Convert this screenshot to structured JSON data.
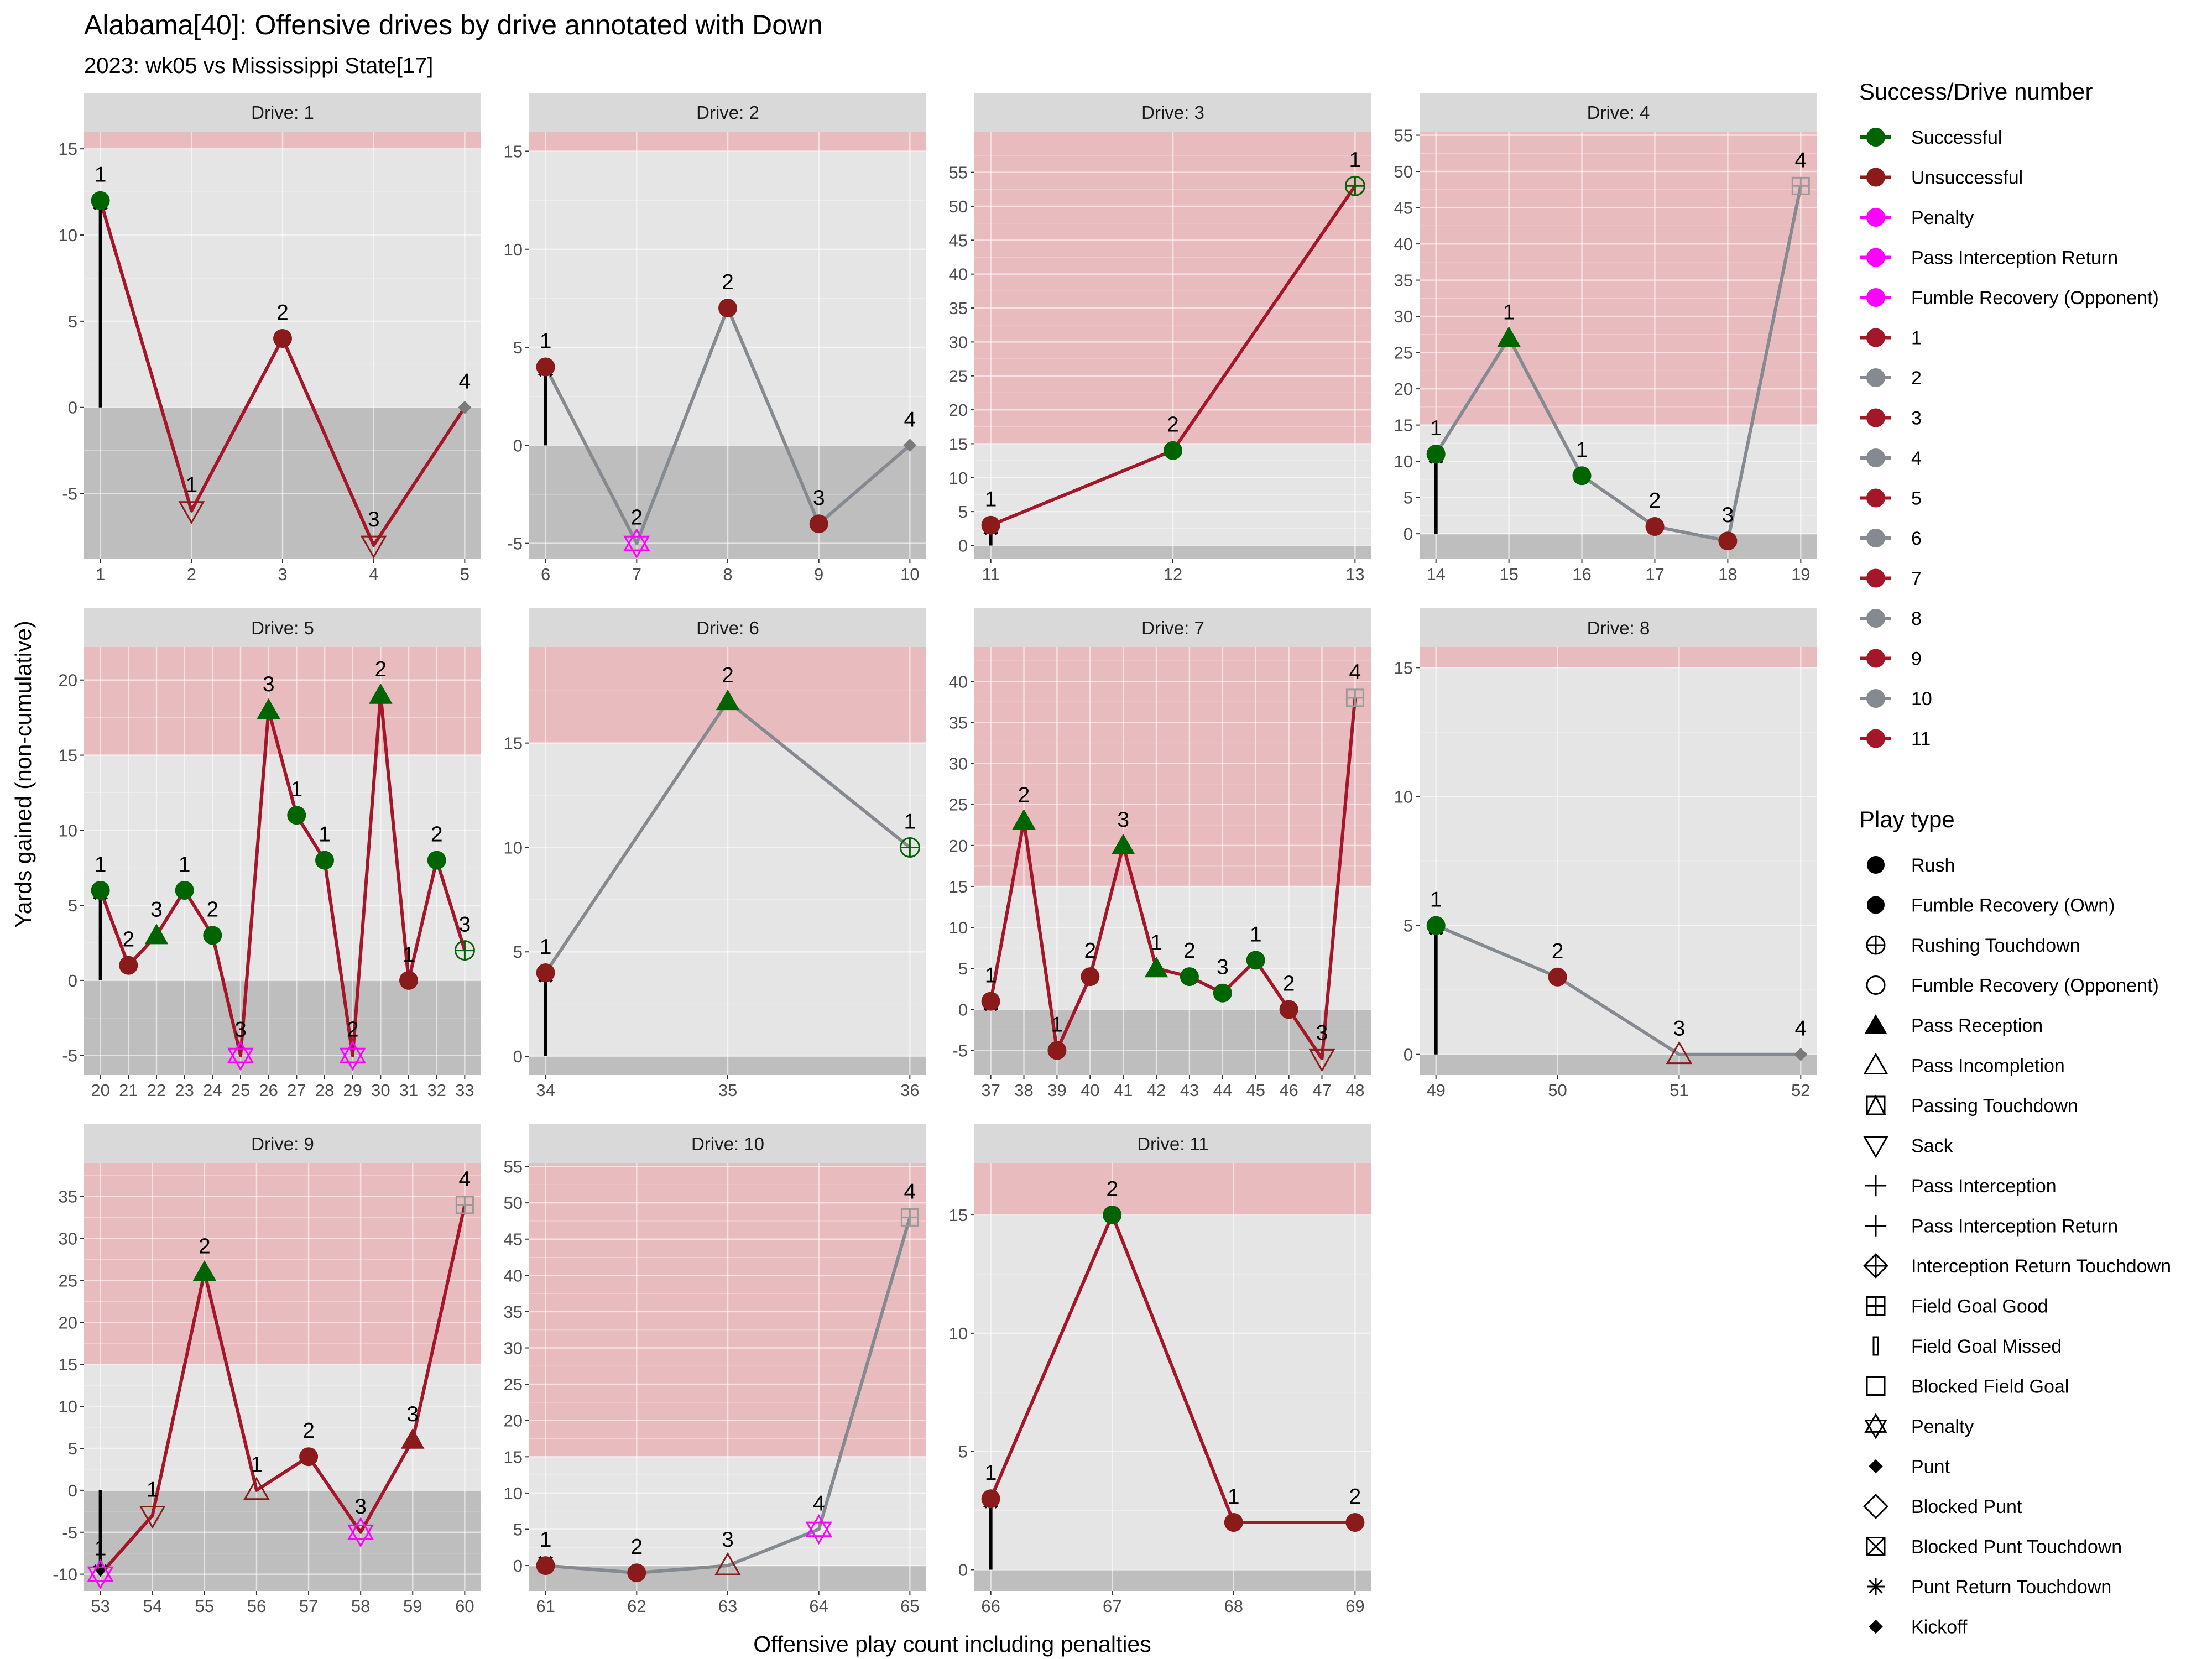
{
  "title": "Alabama[40]: Offensive drives by drive annotated with Down",
  "subtitle": "2023: wk05 vs Mississippi State[17]",
  "colors": {
    "successful": "#006400",
    "unsuccessful": "#8b1a1a",
    "penalty": "#ff00ff",
    "odd_drive_line": "#a4162a",
    "even_drive_line": "#848a90",
    "first_down_zone": "#e8bcbf",
    "loss_zone": "#bebebe",
    "panel_bg": "#e5e5e5",
    "strip_bg": "#d9d9d9"
  },
  "legend": {
    "success_title": "Success/Drive number",
    "success_items": [
      {
        "label": "Successful",
        "color": "#006400"
      },
      {
        "label": "Unsuccessful",
        "color": "#8b1a1a"
      },
      {
        "label": "Penalty",
        "color": "#ff00ff"
      },
      {
        "label": "Pass Interception Return",
        "color": "#ff00ff"
      },
      {
        "label": "Fumble Recovery (Opponent)",
        "color": "#ff00ff"
      },
      {
        "label": "1",
        "color": "#a4162a"
      },
      {
        "label": "2",
        "color": "#848a90"
      },
      {
        "label": "3",
        "color": "#a4162a"
      },
      {
        "label": "4",
        "color": "#848a90"
      },
      {
        "label": "5",
        "color": "#a4162a"
      },
      {
        "label": "6",
        "color": "#848a90"
      },
      {
        "label": "7",
        "color": "#a4162a"
      },
      {
        "label": "8",
        "color": "#848a90"
      },
      {
        "label": "9",
        "color": "#a4162a"
      },
      {
        "label": "10",
        "color": "#848a90"
      },
      {
        "label": "11",
        "color": "#a4162a"
      }
    ],
    "playtype_title": "Play type",
    "playtype_items": [
      {
        "label": "Rush",
        "shape": "circle-filled"
      },
      {
        "label": "Fumble Recovery (Own)",
        "shape": "circle-filled"
      },
      {
        "label": "Rushing Touchdown",
        "shape": "circle-plus"
      },
      {
        "label": "Fumble Recovery (Opponent)",
        "shape": "circle-open"
      },
      {
        "label": "Pass Reception",
        "shape": "triangle-filled"
      },
      {
        "label": "Pass Incompletion",
        "shape": "triangle-open"
      },
      {
        "label": "Passing Touchdown",
        "shape": "square-triangle"
      },
      {
        "label": "Sack",
        "shape": "triangle-down-open"
      },
      {
        "label": "Pass Interception",
        "shape": "plus"
      },
      {
        "label": "Pass Interception Return",
        "shape": "plus"
      },
      {
        "label": "Interception Return Touchdown",
        "shape": "diamond-plus"
      },
      {
        "label": "Field Goal Good",
        "shape": "square-plus"
      },
      {
        "label": "Field Goal Missed",
        "shape": "thin-rect"
      },
      {
        "label": "Blocked Field Goal",
        "shape": "square-open"
      },
      {
        "label": "Penalty",
        "shape": "star-of-david"
      },
      {
        "label": "Punt",
        "shape": "diamond-filled-small"
      },
      {
        "label": "Blocked Punt",
        "shape": "diamond-open"
      },
      {
        "label": "Blocked Punt Touchdown",
        "shape": "square-x"
      },
      {
        "label": "Punt Return Touchdown",
        "shape": "asterisk"
      },
      {
        "label": "Kickoff",
        "shape": "diamond-filled-small"
      }
    ]
  },
  "chart_data": {
    "type": "line",
    "facet_label_prefix": "Drive: ",
    "xlabel": "Offensive play count including penalties",
    "ylabel": "Yards gained (non-cumulative)",
    "first_down_threshold": 15,
    "drives": [
      {
        "drive": 1,
        "ylim": [
          -8.8,
          16
        ],
        "yticks": [
          -5,
          0,
          5,
          10,
          15
        ],
        "xticks": [
          1,
          2,
          3,
          4,
          5
        ],
        "plays": [
          {
            "x": 1,
            "y": 12,
            "down": "1",
            "shape": "circle-filled",
            "status": "successful"
          },
          {
            "x": 2,
            "y": -6,
            "down": "1",
            "shape": "triangle-down-open",
            "status": "unsuccessful"
          },
          {
            "x": 3,
            "y": 4,
            "down": "2",
            "shape": "circle-filled",
            "status": "unsuccessful"
          },
          {
            "x": 4,
            "y": -8,
            "down": "3",
            "shape": "triangle-down-open",
            "status": "unsuccessful"
          },
          {
            "x": 5,
            "y": 0,
            "down": "4",
            "shape": "diamond-filled-small",
            "status": "neutral"
          }
        ]
      },
      {
        "drive": 2,
        "ylim": [
          -5.8,
          16
        ],
        "yticks": [
          -5,
          0,
          5,
          10,
          15
        ],
        "xticks": [
          6,
          7,
          8,
          9,
          10
        ],
        "plays": [
          {
            "x": 6,
            "y": 4,
            "down": "1",
            "shape": "circle-filled",
            "status": "unsuccessful"
          },
          {
            "x": 7,
            "y": -5,
            "down": "2",
            "shape": "star-of-david",
            "status": "penalty"
          },
          {
            "x": 8,
            "y": 7,
            "down": "2",
            "shape": "circle-filled",
            "status": "unsuccessful"
          },
          {
            "x": 9,
            "y": -4,
            "down": "3",
            "shape": "circle-filled",
            "status": "unsuccessful"
          },
          {
            "x": 10,
            "y": 0,
            "down": "4",
            "shape": "diamond-filled-small",
            "status": "neutral"
          }
        ]
      },
      {
        "drive": 3,
        "ylim": [
          -2,
          61
        ],
        "yticks": [
          0,
          5,
          10,
          15,
          20,
          25,
          30,
          35,
          40,
          45,
          50,
          55
        ],
        "xticks": [
          11,
          12,
          13
        ],
        "plays": [
          {
            "x": 11,
            "y": 3,
            "down": "1",
            "shape": "circle-filled",
            "status": "unsuccessful"
          },
          {
            "x": 12,
            "y": 14,
            "down": "2",
            "shape": "circle-filled",
            "status": "successful"
          },
          {
            "x": 13,
            "y": 53,
            "down": "1",
            "shape": "circle-plus",
            "status": "successful"
          }
        ]
      },
      {
        "drive": 4,
        "ylim": [
          -3.5,
          55.5
        ],
        "yticks": [
          0,
          5,
          10,
          15,
          20,
          25,
          30,
          35,
          40,
          45,
          50,
          55
        ],
        "xticks": [
          14,
          15,
          16,
          17,
          18,
          19
        ],
        "plays": [
          {
            "x": 14,
            "y": 11,
            "down": "1",
            "shape": "circle-filled",
            "status": "successful"
          },
          {
            "x": 15,
            "y": 27,
            "down": "1",
            "shape": "triangle-filled",
            "status": "successful"
          },
          {
            "x": 16,
            "y": 8,
            "down": "1",
            "shape": "circle-filled",
            "status": "successful"
          },
          {
            "x": 17,
            "y": 1,
            "down": "2",
            "shape": "circle-filled",
            "status": "unsuccessful"
          },
          {
            "x": 18,
            "y": -1,
            "down": "3",
            "shape": "circle-filled",
            "status": "unsuccessful"
          },
          {
            "x": 19,
            "y": 48,
            "down": "4",
            "shape": "square-plus",
            "status": "neutral"
          }
        ]
      },
      {
        "drive": 5,
        "ylim": [
          -6.3,
          22.2
        ],
        "yticks": [
          -5,
          0,
          5,
          10,
          15,
          20
        ],
        "xticks": [
          20,
          21,
          22,
          23,
          24,
          25,
          26,
          27,
          28,
          29,
          30,
          31,
          32,
          33
        ],
        "plays": [
          {
            "x": 20,
            "y": 6,
            "down": "1",
            "shape": "circle-filled",
            "status": "successful"
          },
          {
            "x": 21,
            "y": 1,
            "down": "2",
            "shape": "circle-filled",
            "status": "unsuccessful"
          },
          {
            "x": 22,
            "y": 3,
            "down": "3",
            "shape": "triangle-filled",
            "status": "successful"
          },
          {
            "x": 23,
            "y": 6,
            "down": "1",
            "shape": "circle-filled",
            "status": "successful"
          },
          {
            "x": 24,
            "y": 3,
            "down": "2",
            "shape": "circle-filled",
            "status": "successful"
          },
          {
            "x": 25,
            "y": -5,
            "down": "3",
            "shape": "star-of-david",
            "status": "penalty"
          },
          {
            "x": 26,
            "y": 18,
            "down": "3",
            "shape": "triangle-filled",
            "status": "successful"
          },
          {
            "x": 27,
            "y": 11,
            "down": "1",
            "shape": "circle-filled",
            "status": "successful"
          },
          {
            "x": 28,
            "y": 8,
            "down": "1",
            "shape": "circle-filled",
            "status": "successful"
          },
          {
            "x": 29,
            "y": -5,
            "down": "2",
            "shape": "star-of-david",
            "status": "penalty"
          },
          {
            "x": 30,
            "y": 19,
            "down": "2",
            "shape": "triangle-filled",
            "status": "successful"
          },
          {
            "x": 31,
            "y": 0,
            "down": "1",
            "shape": "circle-filled",
            "status": "unsuccessful"
          },
          {
            "x": 32,
            "y": 8,
            "down": "2",
            "shape": "circle-filled",
            "status": "successful"
          },
          {
            "x": 33,
            "y": 2,
            "down": "3",
            "shape": "circle-plus",
            "status": "successful"
          }
        ]
      },
      {
        "drive": 6,
        "ylim": [
          -0.9,
          19.6
        ],
        "yticks": [
          0,
          5,
          10,
          15
        ],
        "xticks": [
          34,
          35,
          36
        ],
        "plays": [
          {
            "x": 34,
            "y": 4,
            "down": "1",
            "shape": "circle-filled",
            "status": "unsuccessful"
          },
          {
            "x": 35,
            "y": 17,
            "down": "2",
            "shape": "triangle-filled",
            "status": "successful"
          },
          {
            "x": 36,
            "y": 10,
            "down": "1",
            "shape": "circle-plus",
            "status": "successful"
          }
        ]
      },
      {
        "drive": 7,
        "ylim": [
          -8,
          44.2
        ],
        "yticks": [
          -5,
          0,
          5,
          10,
          15,
          20,
          25,
          30,
          35,
          40
        ],
        "xticks": [
          37,
          38,
          39,
          40,
          41,
          42,
          43,
          44,
          45,
          46,
          47,
          48
        ],
        "plays": [
          {
            "x": 37,
            "y": 1,
            "down": "1",
            "shape": "circle-filled",
            "status": "unsuccessful"
          },
          {
            "x": 38,
            "y": 23,
            "down": "2",
            "shape": "triangle-filled",
            "status": "successful"
          },
          {
            "x": 39,
            "y": -5,
            "down": "1",
            "shape": "circle-filled",
            "status": "unsuccessful"
          },
          {
            "x": 40,
            "y": 4,
            "down": "2",
            "shape": "circle-filled",
            "status": "unsuccessful"
          },
          {
            "x": 41,
            "y": 20,
            "down": "3",
            "shape": "triangle-filled",
            "status": "successful"
          },
          {
            "x": 42,
            "y": 5,
            "down": "1",
            "shape": "triangle-filled",
            "status": "successful"
          },
          {
            "x": 43,
            "y": 4,
            "down": "2",
            "shape": "circle-filled",
            "status": "successful"
          },
          {
            "x": 44,
            "y": 2,
            "down": "3",
            "shape": "circle-filled",
            "status": "successful"
          },
          {
            "x": 45,
            "y": 6,
            "down": "1",
            "shape": "circle-filled",
            "status": "successful"
          },
          {
            "x": 46,
            "y": 0,
            "down": "2",
            "shape": "circle-filled",
            "status": "unsuccessful"
          },
          {
            "x": 47,
            "y": -6,
            "down": "3",
            "shape": "triangle-down-open",
            "status": "unsuccessful"
          },
          {
            "x": 48,
            "y": 38,
            "down": "4",
            "shape": "square-plus",
            "status": "neutral"
          }
        ]
      },
      {
        "drive": 8,
        "ylim": [
          -0.8,
          15.8
        ],
        "yticks": [
          0,
          5,
          10,
          15
        ],
        "xticks": [
          49,
          50,
          51,
          52
        ],
        "plays": [
          {
            "x": 49,
            "y": 5,
            "down": "1",
            "shape": "circle-filled",
            "status": "successful"
          },
          {
            "x": 50,
            "y": 3,
            "down": "2",
            "shape": "circle-filled",
            "status": "unsuccessful"
          },
          {
            "x": 51,
            "y": 0,
            "down": "3",
            "shape": "triangle-open",
            "status": "unsuccessful"
          },
          {
            "x": 52,
            "y": 0,
            "down": "4",
            "shape": "diamond-filled-small",
            "status": "neutral"
          }
        ]
      },
      {
        "drive": 9,
        "ylim": [
          -12,
          39
        ],
        "yticks": [
          -10,
          -5,
          0,
          5,
          10,
          15,
          20,
          25,
          30,
          35
        ],
        "xticks": [
          53,
          54,
          55,
          56,
          57,
          58,
          59,
          60
        ],
        "plays": [
          {
            "x": 53,
            "y": -10,
            "down": "1",
            "shape": "star-of-david",
            "status": "penalty"
          },
          {
            "x": 54,
            "y": -3,
            "down": "1",
            "shape": "triangle-down-open",
            "status": "unsuccessful"
          },
          {
            "x": 55,
            "y": 26,
            "down": "2",
            "shape": "triangle-filled",
            "status": "successful"
          },
          {
            "x": 56,
            "y": 0,
            "down": "1",
            "shape": "triangle-open",
            "status": "unsuccessful"
          },
          {
            "x": 57,
            "y": 4,
            "down": "2",
            "shape": "circle-filled",
            "status": "unsuccessful"
          },
          {
            "x": 58,
            "y": -5,
            "down": "3",
            "shape": "star-of-david",
            "status": "penalty"
          },
          {
            "x": 59,
            "y": 6,
            "down": "3",
            "shape": "triangle-filled",
            "status": "unsuccessful"
          },
          {
            "x": 60,
            "y": 34,
            "down": "4",
            "shape": "square-plus",
            "status": "neutral"
          }
        ]
      },
      {
        "drive": 10,
        "ylim": [
          -3.5,
          55.5
        ],
        "yticks": [
          0,
          5,
          10,
          15,
          20,
          25,
          30,
          35,
          40,
          45,
          50,
          55
        ],
        "xticks": [
          61,
          62,
          63,
          64,
          65
        ],
        "plays": [
          {
            "x": 61,
            "y": 0,
            "down": "1",
            "shape": "circle-filled",
            "status": "unsuccessful"
          },
          {
            "x": 62,
            "y": -1,
            "down": "2",
            "shape": "circle-filled",
            "status": "unsuccessful"
          },
          {
            "x": 63,
            "y": 0,
            "down": "3",
            "shape": "triangle-open",
            "status": "unsuccessful"
          },
          {
            "x": 64,
            "y": 5,
            "down": "4",
            "shape": "star-of-david",
            "status": "penalty"
          },
          {
            "x": 65,
            "y": 48,
            "down": "4",
            "shape": "square-plus",
            "status": "neutral"
          }
        ]
      },
      {
        "drive": 11,
        "ylim": [
          -0.9,
          17.2
        ],
        "yticks": [
          0,
          5,
          10,
          15
        ],
        "xticks": [
          66,
          67,
          68,
          69
        ],
        "plays": [
          {
            "x": 66,
            "y": 3,
            "down": "1",
            "shape": "circle-filled",
            "status": "unsuccessful"
          },
          {
            "x": 67,
            "y": 15,
            "down": "2",
            "shape": "circle-filled",
            "status": "successful"
          },
          {
            "x": 68,
            "y": 2,
            "down": "1",
            "shape": "circle-filled",
            "status": "unsuccessful"
          },
          {
            "x": 69,
            "y": 2,
            "down": "2",
            "shape": "circle-filled",
            "status": "unsuccessful"
          }
        ]
      }
    ]
  }
}
